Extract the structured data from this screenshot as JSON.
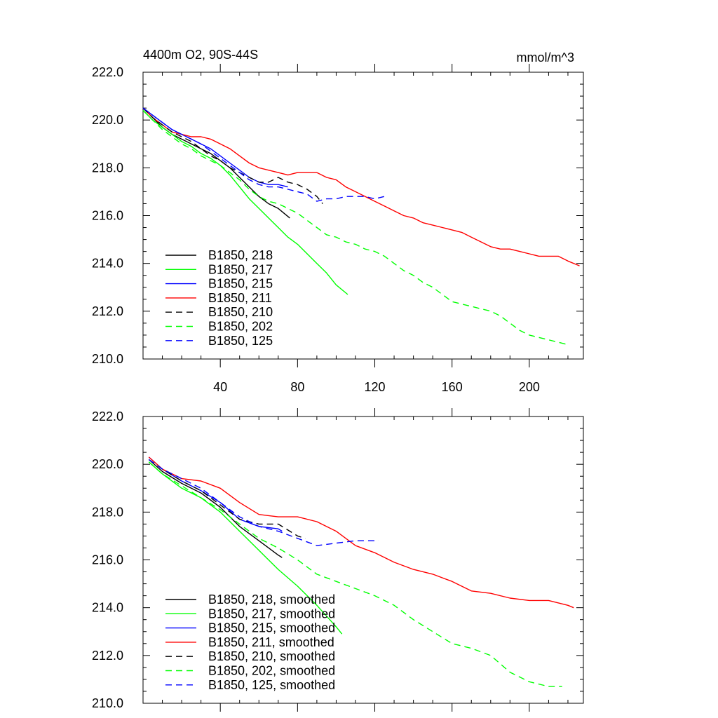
{
  "chart_data": [
    {
      "type": "line",
      "title": "4400m O2, 90S-44S",
      "units_label": "mmol/m^3",
      "xlim": [
        0,
        228
      ],
      "ylim": [
        210,
        222
      ],
      "xticks": [
        40,
        80,
        120,
        160,
        200
      ],
      "xtick_labels": [
        "40",
        "80",
        "120",
        "160",
        "200"
      ],
      "yticks": [
        210,
        212,
        214,
        216,
        218,
        220,
        222
      ],
      "ytick_labels": [
        "210.0",
        "212.0",
        "214.0",
        "216.0",
        "218.0",
        "220.0",
        "222.0"
      ],
      "legend_position": "bottom-left",
      "series": [
        {
          "name": "B1850, 218",
          "color": "#000000",
          "dash": "solid",
          "x": [
            0,
            5,
            10,
            15,
            20,
            25,
            30,
            35,
            40,
            45,
            50,
            55,
            60,
            65,
            70,
            76
          ],
          "y": [
            220.5,
            220.1,
            219.7,
            219.4,
            219.2,
            219.0,
            218.8,
            218.6,
            218.3,
            218.0,
            217.6,
            217.2,
            216.8,
            216.5,
            216.3,
            215.9
          ]
        },
        {
          "name": "B1850, 217",
          "color": "#00ff00",
          "dash": "solid",
          "x": [
            0,
            5,
            10,
            15,
            20,
            25,
            30,
            35,
            40,
            45,
            50,
            55,
            60,
            65,
            70,
            75,
            80,
            85,
            90,
            95,
            100,
            106
          ],
          "y": [
            220.4,
            220.0,
            219.7,
            219.4,
            219.1,
            218.9,
            218.6,
            218.4,
            218.1,
            217.7,
            217.2,
            216.7,
            216.3,
            215.9,
            215.5,
            215.1,
            214.8,
            214.4,
            214.0,
            213.6,
            213.1,
            212.7
          ]
        },
        {
          "name": "B1850, 215",
          "color": "#0000ff",
          "dash": "solid",
          "x": [
            0,
            5,
            10,
            15,
            20,
            25,
            30,
            35,
            40,
            45,
            50,
            55,
            60,
            65,
            70,
            75
          ],
          "y": [
            220.5,
            220.2,
            219.9,
            219.6,
            219.4,
            219.2,
            219.0,
            218.8,
            218.5,
            218.2,
            217.9,
            217.6,
            217.4,
            217.3,
            217.3,
            217.2
          ]
        },
        {
          "name": "B1850, 211",
          "color": "#ff0000",
          "dash": "solid",
          "x": [
            0,
            5,
            10,
            15,
            20,
            25,
            30,
            35,
            40,
            45,
            50,
            55,
            60,
            65,
            70,
            75,
            80,
            85,
            90,
            95,
            100,
            105,
            110,
            115,
            120,
            125,
            130,
            135,
            140,
            145,
            150,
            155,
            160,
            165,
            170,
            175,
            180,
            185,
            190,
            195,
            200,
            205,
            210,
            215,
            220,
            226
          ],
          "y": [
            220.5,
            220.1,
            219.8,
            219.5,
            219.4,
            219.3,
            219.3,
            219.2,
            219.0,
            218.8,
            218.5,
            218.2,
            218.0,
            217.9,
            217.8,
            217.7,
            217.8,
            217.8,
            217.8,
            217.6,
            217.5,
            217.2,
            217.0,
            216.8,
            216.6,
            216.4,
            216.2,
            216.0,
            215.9,
            215.7,
            215.6,
            215.5,
            215.4,
            215.3,
            215.1,
            214.9,
            214.7,
            214.6,
            214.6,
            214.5,
            214.4,
            214.3,
            214.3,
            214.3,
            214.1,
            213.9
          ]
        },
        {
          "name": "B1850, 210",
          "color": "#000000",
          "dash": "dashed",
          "x": [
            0,
            5,
            10,
            15,
            20,
            25,
            30,
            35,
            40,
            45,
            50,
            55,
            60,
            65,
            70,
            75,
            80,
            85,
            90,
            93
          ],
          "y": [
            220.5,
            220.1,
            219.8,
            219.5,
            219.3,
            219.1,
            218.8,
            218.5,
            218.3,
            218.0,
            217.8,
            217.6,
            217.4,
            217.4,
            217.6,
            217.4,
            217.3,
            217.1,
            216.8,
            216.5
          ]
        },
        {
          "name": "B1850, 202",
          "color": "#00ff00",
          "dash": "dashed",
          "x": [
            0,
            5,
            10,
            15,
            20,
            25,
            30,
            35,
            40,
            45,
            50,
            55,
            60,
            65,
            70,
            75,
            80,
            85,
            90,
            95,
            100,
            105,
            110,
            115,
            120,
            125,
            130,
            135,
            140,
            145,
            150,
            155,
            160,
            165,
            170,
            175,
            180,
            185,
            190,
            195,
            200,
            205,
            210,
            215,
            220
          ],
          "y": [
            220.4,
            220.0,
            219.6,
            219.3,
            219.0,
            218.8,
            218.5,
            218.3,
            218.1,
            217.8,
            217.5,
            217.1,
            216.8,
            216.6,
            216.5,
            216.3,
            216.1,
            215.8,
            215.5,
            215.2,
            215.1,
            214.9,
            214.8,
            214.6,
            214.5,
            214.3,
            214.0,
            213.7,
            213.5,
            213.2,
            213.0,
            212.7,
            212.4,
            212.3,
            212.2,
            212.1,
            212.0,
            211.8,
            211.5,
            211.2,
            211.0,
            210.9,
            210.8,
            210.7,
            210.6
          ]
        },
        {
          "name": "B1850, 125",
          "color": "#0000ff",
          "dash": "dashed",
          "x": [
            0,
            5,
            10,
            15,
            20,
            25,
            30,
            35,
            40,
            45,
            50,
            55,
            60,
            65,
            70,
            75,
            80,
            85,
            90,
            95,
            100,
            105,
            110,
            115,
            120,
            125
          ],
          "y": [
            220.5,
            220.2,
            219.9,
            219.6,
            219.4,
            219.2,
            219.0,
            218.7,
            218.4,
            218.1,
            217.8,
            217.5,
            217.3,
            217.2,
            217.2,
            217.1,
            217.0,
            216.9,
            216.6,
            216.7,
            216.7,
            216.8,
            216.8,
            216.8,
            216.7,
            216.8
          ]
        }
      ]
    },
    {
      "type": "line",
      "xlim": [
        0,
        228
      ],
      "ylim": [
        210,
        222
      ],
      "xticks": [
        40,
        80,
        120,
        160,
        200
      ],
      "yticks": [
        210,
        212,
        214,
        216,
        218,
        220,
        222
      ],
      "ytick_labels": [
        "210.0",
        "212.0",
        "214.0",
        "216.0",
        "218.0",
        "220.0",
        "222.0"
      ],
      "legend_position": "bottom-left",
      "series": [
        {
          "name": "B1850, 218, smoothed",
          "color": "#000000",
          "dash": "solid",
          "x": [
            3,
            10,
            20,
            30,
            40,
            50,
            60,
            70,
            72
          ],
          "y": [
            220.2,
            219.7,
            219.2,
            218.8,
            218.2,
            217.4,
            216.8,
            216.2,
            216.1
          ]
        },
        {
          "name": "B1850, 217, smoothed",
          "color": "#00ff00",
          "dash": "solid",
          "x": [
            3,
            10,
            20,
            30,
            40,
            50,
            60,
            70,
            80,
            90,
            100,
            103
          ],
          "y": [
            220.1,
            219.6,
            219.0,
            218.6,
            218.0,
            217.2,
            216.4,
            215.6,
            214.9,
            214.1,
            213.2,
            212.9
          ]
        },
        {
          "name": "B1850, 215, smoothed",
          "color": "#0000ff",
          "dash": "solid",
          "x": [
            3,
            10,
            20,
            30,
            40,
            50,
            60,
            70,
            72
          ],
          "y": [
            220.3,
            219.8,
            219.3,
            218.9,
            218.4,
            217.7,
            217.4,
            217.3,
            217.2
          ]
        },
        {
          "name": "B1850, 211, smoothed",
          "color": "#ff0000",
          "dash": "solid",
          "x": [
            3,
            10,
            20,
            30,
            40,
            50,
            60,
            70,
            80,
            90,
            100,
            110,
            120,
            130,
            140,
            150,
            160,
            170,
            180,
            190,
            200,
            210,
            220,
            223
          ],
          "y": [
            220.3,
            219.8,
            219.4,
            219.3,
            219.0,
            218.4,
            217.9,
            217.8,
            217.8,
            217.6,
            217.2,
            216.6,
            216.3,
            215.9,
            215.6,
            215.4,
            215.1,
            214.7,
            214.6,
            214.4,
            214.3,
            214.3,
            214.1,
            214.0
          ]
        },
        {
          "name": "B1850, 210, smoothed",
          "color": "#000000",
          "dash": "dashed",
          "x": [
            3,
            10,
            20,
            30,
            40,
            50,
            60,
            70,
            80,
            84
          ],
          "y": [
            220.2,
            219.8,
            219.3,
            218.9,
            218.3,
            217.7,
            217.5,
            217.5,
            217.0,
            216.9
          ]
        },
        {
          "name": "B1850, 202, smoothed",
          "color": "#00ff00",
          "dash": "dashed",
          "x": [
            3,
            10,
            20,
            30,
            40,
            50,
            60,
            70,
            80,
            90,
            100,
            110,
            120,
            130,
            140,
            150,
            160,
            170,
            180,
            190,
            200,
            210,
            217
          ],
          "y": [
            220.1,
            219.6,
            219.1,
            218.6,
            218.1,
            217.5,
            216.9,
            216.5,
            216.0,
            215.4,
            215.1,
            214.8,
            214.5,
            214.1,
            213.5,
            213.0,
            212.5,
            212.3,
            212.0,
            211.3,
            210.9,
            210.7,
            210.7
          ]
        },
        {
          "name": "B1850, 125, smoothed",
          "color": "#0000ff",
          "dash": "dashed",
          "x": [
            3,
            10,
            20,
            30,
            40,
            50,
            60,
            70,
            80,
            90,
            100,
            110,
            120,
            122
          ],
          "y": [
            220.2,
            219.8,
            219.4,
            219.0,
            218.4,
            217.8,
            217.4,
            217.2,
            216.9,
            216.6,
            216.7,
            216.8,
            216.8,
            216.8
          ]
        }
      ]
    }
  ]
}
